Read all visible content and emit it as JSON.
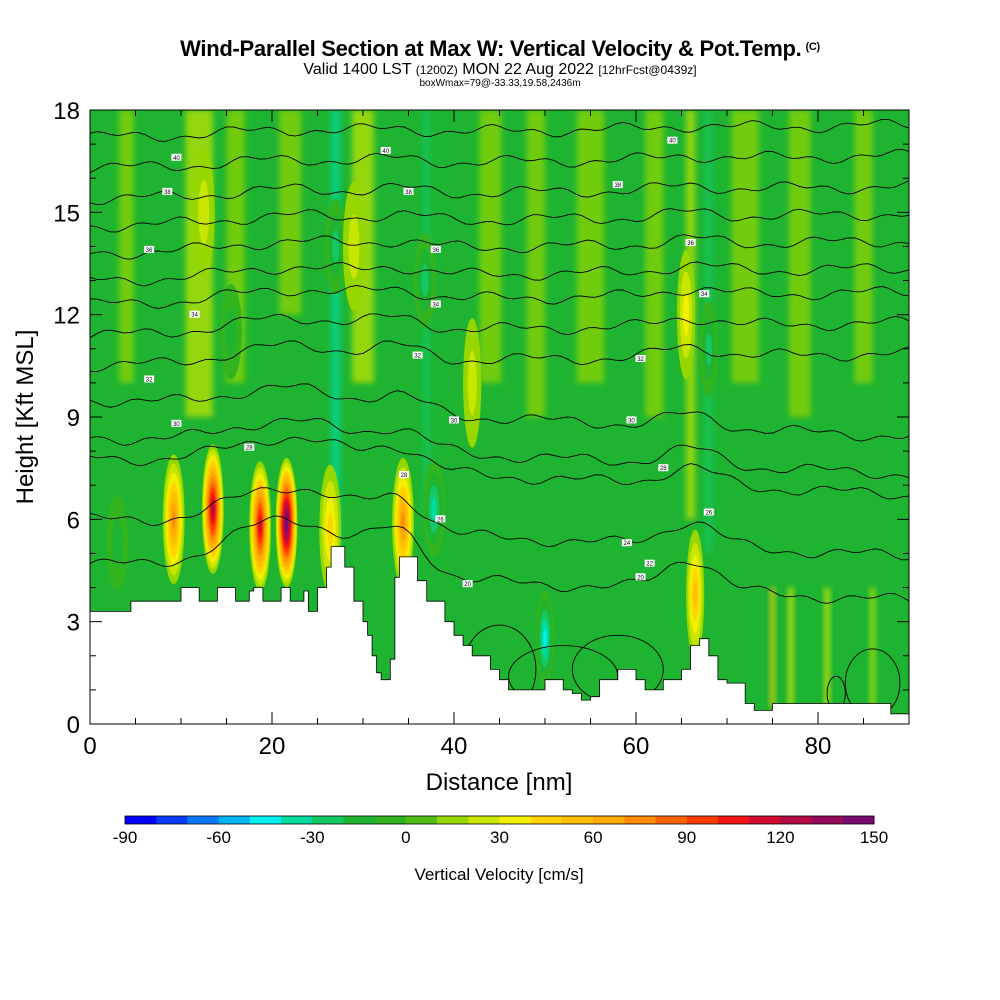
{
  "header": {
    "title": "Wind-Parallel Section at Max W: Vertical Velocity & Pot.Temp.",
    "copyright": "(C)",
    "valid_prefix": "Valid 1400 LST",
    "valid_utc": "(1200Z)",
    "valid_date": "MON 22 Aug 2022",
    "forecast": "[12hrFcst@0439z]",
    "box_info": "boxWmax=79@-33.33,19.58,2436m"
  },
  "colors": {
    "colorbar": [
      "#0000ff",
      "#0a3cff",
      "#0a78ff",
      "#00b4f0",
      "#00f0f0",
      "#00dca0",
      "#14c864",
      "#1eb432",
      "#32b41e",
      "#50be14",
      "#96d700",
      "#c8e600",
      "#f0f000",
      "#ffd200",
      "#ffbe00",
      "#ffaa00",
      "#ff8c00",
      "#ff6400",
      "#ff3c00",
      "#f01414",
      "#d20a32",
      "#b40a46",
      "#960a5a",
      "#780a6e"
    ],
    "base_green": "#1eb432",
    "terrain": "#ffffff"
  },
  "chart_data": {
    "type": "heatmap",
    "title": "Wind-Parallel Section at Max W: Vertical Velocity & Pot.Temp.",
    "xlabel": "Distance [nm]",
    "ylabel": "Height [Kft MSL]",
    "xlim": [
      0,
      90
    ],
    "ylim": [
      0,
      18
    ],
    "x_ticks": [
      "0",
      "20",
      "40",
      "60",
      "80"
    ],
    "x_tick_values": [
      0,
      20,
      40,
      60,
      80
    ],
    "y_ticks": [
      "0",
      "3",
      "6",
      "9",
      "12",
      "15",
      "18"
    ],
    "y_tick_values": [
      0,
      3,
      6,
      9,
      12,
      15,
      18
    ],
    "colorbar": {
      "label": "Vertical Velocity [cm/s]",
      "min": -90,
      "max": 160,
      "step": 10,
      "tick_labels": [
        "-90",
        "-60",
        "-30",
        "0",
        "30",
        "60",
        "90",
        "120",
        "150"
      ],
      "tick_values": [
        -90,
        -60,
        -30,
        0,
        30,
        60,
        90,
        120,
        150
      ]
    },
    "terrain_profile": {
      "distance_nm": [
        0,
        4,
        4.5,
        7,
        9.5,
        10,
        11,
        12,
        12.5,
        13,
        13.5,
        14,
        15,
        16,
        17,
        17.5,
        18,
        19,
        20,
        21,
        22,
        23,
        23.5,
        24,
        25,
        26,
        26.5,
        27,
        28,
        29,
        30,
        30.5,
        31,
        31.5,
        32,
        32.5,
        33,
        33.5,
        34,
        35,
        36,
        37,
        38,
        39,
        40,
        41,
        42,
        43,
        44,
        45,
        46,
        47,
        48,
        49,
        50,
        51,
        52,
        53,
        54,
        55,
        56,
        57,
        58,
        59,
        60,
        61,
        62,
        63,
        64,
        65,
        66,
        67,
        68,
        69,
        70,
        71,
        72,
        73,
        74,
        75,
        76,
        78,
        80,
        82,
        84,
        86,
        88,
        90
      ],
      "height_kft": [
        3.3,
        3.3,
        3.6,
        3.6,
        3.6,
        4.0,
        4.0,
        3.6,
        3.6,
        3.6,
        3.6,
        4.0,
        4.0,
        3.6,
        3.6,
        3.9,
        4.0,
        3.6,
        3.6,
        4.0,
        3.6,
        3.6,
        3.9,
        3.3,
        4.0,
        4.6,
        5.2,
        5.2,
        4.6,
        3.6,
        3.0,
        2.6,
        2.0,
        1.5,
        1.3,
        1.3,
        1.9,
        4.3,
        4.9,
        4.9,
        4.2,
        3.6,
        3.6,
        3.0,
        2.6,
        2.3,
        2.0,
        2.0,
        1.6,
        1.3,
        1.0,
        1.0,
        1.0,
        1.0,
        1.3,
        1.3,
        1.0,
        0.9,
        0.7,
        0.8,
        1.3,
        1.3,
        1.6,
        1.6,
        1.3,
        1.0,
        1.0,
        1.3,
        1.3,
        1.6,
        2.3,
        2.5,
        2.0,
        1.3,
        1.2,
        1.2,
        0.6,
        0.4,
        0.4,
        0.6,
        0.6,
        0.6,
        0.6,
        0.6,
        0.6,
        0.6,
        0.3,
        0.3
      ]
    },
    "updrafts": [
      {
        "x_nm": 9.2,
        "z_kft": 6.0,
        "peak_cm_s": 70
      },
      {
        "x_nm": 13.5,
        "z_kft": 6.3,
        "peak_cm_s": 115
      },
      {
        "x_nm": 18.7,
        "z_kft": 5.8,
        "peak_cm_s": 110
      },
      {
        "x_nm": 21.6,
        "z_kft": 5.9,
        "peak_cm_s": 150
      },
      {
        "x_nm": 26.4,
        "z_kft": 5.7,
        "peak_cm_s": 40
      },
      {
        "x_nm": 34.4,
        "z_kft": 5.9,
        "peak_cm_s": 70
      },
      {
        "x_nm": 66.5,
        "z_kft": 3.8,
        "peak_cm_s": 45
      },
      {
        "x_nm": 12.5,
        "z_kft": 15.0,
        "peak_cm_s": 18
      },
      {
        "x_nm": 29.0,
        "z_kft": 14.0,
        "peak_cm_s": 20
      },
      {
        "x_nm": 42.0,
        "z_kft": 10.0,
        "peak_cm_s": 15
      },
      {
        "x_nm": 65.5,
        "z_kft": 12.0,
        "peak_cm_s": 25
      }
    ],
    "downdrafts": [
      {
        "x_nm": 27.0,
        "z_kft": 14.0,
        "peak_cm_s": -30
      },
      {
        "x_nm": 36.8,
        "z_kft": 13.0,
        "peak_cm_s": -28
      },
      {
        "x_nm": 37.8,
        "z_kft": 6.3,
        "peak_cm_s": -35
      },
      {
        "x_nm": 50.0,
        "z_kft": 2.5,
        "peak_cm_s": -45
      },
      {
        "x_nm": 68.0,
        "z_kft": 11.0,
        "peak_cm_s": -25
      },
      {
        "x_nm": 3.0,
        "z_kft": 5.3,
        "peak_cm_s": -20
      },
      {
        "x_nm": 15.5,
        "z_kft": 11.5,
        "peak_cm_s": -15
      }
    ],
    "pot_temp_contours": {
      "heights_kft_left": [
        4.7,
        6.0,
        7.8,
        8.4,
        9.5,
        10.5,
        11.4,
        12.3,
        13.0,
        13.8,
        14.6,
        15.4,
        16.3,
        17.2
      ],
      "labels": [
        {
          "text": "40",
          "x_nm": 9.5,
          "z_kft": 16.6
        },
        {
          "text": "40",
          "x_nm": 32.5,
          "z_kft": 16.8
        },
        {
          "text": "40",
          "x_nm": 64.0,
          "z_kft": 17.1
        },
        {
          "text": "38",
          "x_nm": 8.5,
          "z_kft": 15.6
        },
        {
          "text": "38",
          "x_nm": 35.0,
          "z_kft": 15.6
        },
        {
          "text": "38",
          "x_nm": 58.0,
          "z_kft": 15.8
        },
        {
          "text": "36",
          "x_nm": 6.5,
          "z_kft": 13.9
        },
        {
          "text": "36",
          "x_nm": 38.0,
          "z_kft": 13.9
        },
        {
          "text": "36",
          "x_nm": 66.0,
          "z_kft": 14.1
        },
        {
          "text": "34",
          "x_nm": 11.5,
          "z_kft": 12.0
        },
        {
          "text": "34",
          "x_nm": 38.0,
          "z_kft": 12.3
        },
        {
          "text": "34",
          "x_nm": 67.5,
          "z_kft": 12.6
        },
        {
          "text": "32",
          "x_nm": 6.5,
          "z_kft": 10.1
        },
        {
          "text": "32",
          "x_nm": 36.0,
          "z_kft": 10.8
        },
        {
          "text": "32",
          "x_nm": 60.5,
          "z_kft": 10.7
        },
        {
          "text": "30",
          "x_nm": 9.5,
          "z_kft": 8.8
        },
        {
          "text": "30",
          "x_nm": 40.0,
          "z_kft": 8.9
        },
        {
          "text": "30",
          "x_nm": 59.5,
          "z_kft": 8.9
        },
        {
          "text": "28",
          "x_nm": 17.5,
          "z_kft": 8.1
        },
        {
          "text": "28",
          "x_nm": 34.5,
          "z_kft": 7.3
        },
        {
          "text": "28",
          "x_nm": 63.0,
          "z_kft": 7.5
        },
        {
          "text": "26",
          "x_nm": 38.5,
          "z_kft": 6.0
        },
        {
          "text": "26",
          "x_nm": 68.0,
          "z_kft": 6.2
        },
        {
          "text": "24",
          "x_nm": 59.0,
          "z_kft": 5.3
        },
        {
          "text": "22",
          "x_nm": 61.5,
          "z_kft": 4.7
        },
        {
          "text": "20",
          "x_nm": 41.5,
          "z_kft": 4.1
        },
        {
          "text": "20",
          "x_nm": 60.5,
          "z_kft": 4.3
        }
      ]
    }
  }
}
